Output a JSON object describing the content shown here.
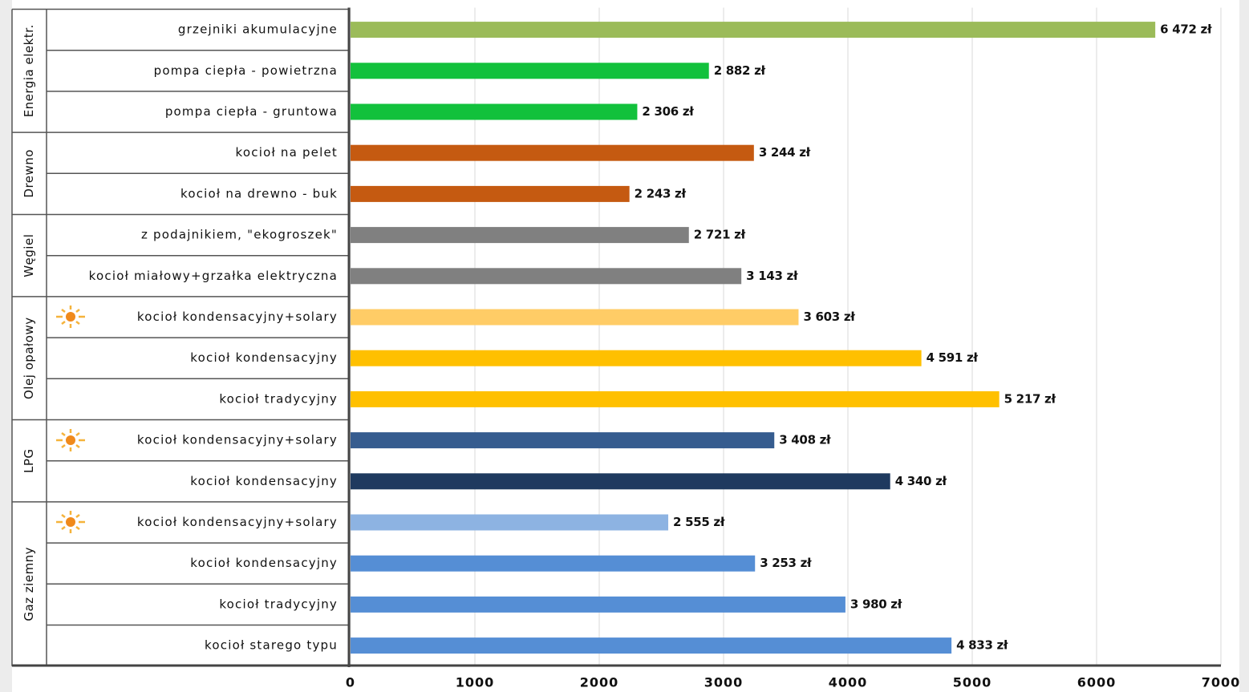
{
  "chart_data": {
    "type": "bar",
    "orientation": "horizontal",
    "groups": [
      {
        "name": "Energia elektr.",
        "categories": [
          "grzejniki akumulacyjne",
          "pompa ciepła - powietrzna",
          "pompa ciepła - gruntowa"
        ],
        "values": [
          6472,
          2882,
          2306
        ],
        "value_labels": [
          "6 472 zł",
          "2 882 zł",
          "2 306 zł"
        ],
        "colors": [
          "#9bbb59",
          "#12c13c",
          "#12c13c"
        ]
      },
      {
        "name": "Drewno",
        "categories": [
          "kocioł na pelet",
          "kocioł na drewno - buk"
        ],
        "values": [
          3244,
          2243
        ],
        "value_labels": [
          "3 244 zł",
          "2 243 zł"
        ],
        "colors": [
          "#c55a11",
          "#c55a11"
        ]
      },
      {
        "name": "Węgiel",
        "categories": [
          "z podajnikiem, \"ekogroszek\"",
          "kocioł miałowy+grzałka elektryczna"
        ],
        "values": [
          2721,
          3143
        ],
        "value_labels": [
          "2 721 zł",
          "3 143 zł"
        ],
        "colors": [
          "#808080",
          "#808080"
        ]
      },
      {
        "name": "Olej opałowy",
        "categories": [
          "kocioł kondensacyjny+solary",
          "kocioł kondensacyjny",
          "kocioł tradycyjny"
        ],
        "values": [
          3603,
          4591,
          5217
        ],
        "value_labels": [
          "3 603 zł",
          "4 591 zł",
          "5 217 zł"
        ],
        "colors": [
          "#ffcc66",
          "#ffc000",
          "#ffc000"
        ]
      },
      {
        "name": "LPG",
        "categories": [
          "kocioł kondensacyjny+solary",
          "kocioł kondensacyjny"
        ],
        "values": [
          3408,
          4340
        ],
        "value_labels": [
          "3 408 zł",
          "4 340 zł"
        ],
        "colors": [
          "#365c8f",
          "#1f3a5f"
        ]
      },
      {
        "name": "Gaz ziemny",
        "categories": [
          "kocioł kondensacyjny+solary",
          "kocioł kondensacyjny",
          "kocioł tradycyjny",
          "kocioł starego typu"
        ],
        "values": [
          2555,
          3253,
          3980,
          4833
        ],
        "value_labels": [
          "2 555 zł",
          "3 253 zł",
          "3 980 zł",
          "4 833 zł"
        ],
        "colors": [
          "#8db3e2",
          "#558ed5",
          "#558ed5",
          "#558ed5"
        ]
      }
    ],
    "xlim": [
      0,
      7000
    ],
    "xticks": [
      0,
      1000,
      2000,
      3000,
      4000,
      5000,
      6000,
      7000
    ],
    "grid": true
  }
}
